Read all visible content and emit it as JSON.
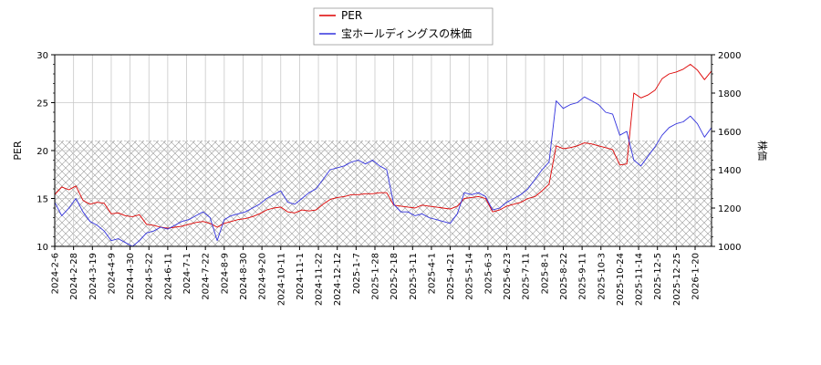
{
  "chart_data": {
    "type": "line",
    "legend": {
      "placement": "top-center",
      "entries": [
        {
          "label": "PER",
          "color": "#dd0000"
        },
        {
          "label": "宝ホールディングスの株価",
          "color": "#3333dd"
        }
      ]
    },
    "ylabel_left": "PER",
    "ylabel_right": "株価",
    "ylim_left": [
      10,
      30
    ],
    "ylim_right": [
      1000,
      2000
    ],
    "yticks_left": [
      "10",
      "15",
      "20",
      "25",
      "30"
    ],
    "yticks_right": [
      "1000",
      "1200",
      "1400",
      "1600",
      "1800",
      "2000"
    ],
    "shaded_band_left": [
      10,
      21
    ],
    "grid": true,
    "x_tick_labels": [
      "2024-2-6",
      "2024-2-28",
      "2024-3-19",
      "2024-4-9",
      "2024-4-30",
      "2024-5-22",
      "2024-6-11",
      "2024-7-1",
      "2024-7-22",
      "2024-8-9",
      "2024-8-30",
      "2024-9-20",
      "2024-10-11",
      "2024-11-1",
      "2024-11-22",
      "2024-12-12",
      "2025-1-7",
      "2025-1-28",
      "2025-2-18",
      "2025-3-11",
      "2025-4-1",
      "2025-4-21",
      "2025-5-14",
      "2025-6-3",
      "2025-6-23",
      "2025-7-11",
      "2025-8-1",
      "2025-8-22",
      "2025-9-11",
      "2025-10-3",
      "2025-10-24",
      "2025-11-14",
      "2025-12-5",
      "2025-12-25",
      "2026-1-20"
    ],
    "series": [
      {
        "name": "PER",
        "axis": "left",
        "color": "#dd0000",
        "values": [
          15.4,
          16.2,
          15.9,
          16.3,
          14.8,
          14.4,
          14.6,
          14.5,
          13.4,
          13.5,
          13.2,
          13.1,
          13.3,
          12.3,
          12.2,
          12.0,
          11.9,
          12.0,
          12.1,
          12.3,
          12.5,
          12.6,
          12.4,
          12.0,
          12.4,
          12.6,
          12.8,
          12.9,
          13.1,
          13.4,
          13.8,
          14.0,
          14.1,
          13.6,
          13.5,
          13.8,
          13.7,
          13.8,
          14.4,
          14.9,
          15.1,
          15.2,
          15.4,
          15.4,
          15.5,
          15.5,
          15.6,
          15.6,
          14.3,
          14.2,
          14.1,
          14.0,
          14.3,
          14.2,
          14.1,
          14.0,
          13.9,
          14.2,
          15.0,
          15.1,
          15.2,
          15.0,
          13.6,
          13.8,
          14.2,
          14.4,
          14.6,
          15.0,
          15.2,
          15.8,
          16.5,
          20.5,
          20.2,
          20.3,
          20.5,
          20.8,
          20.7,
          20.5,
          20.3,
          20.1,
          18.5,
          18.6,
          26.0,
          25.5,
          25.8,
          26.3,
          27.5,
          28.0,
          28.2,
          28.5,
          29.0,
          28.4,
          27.4,
          28.3
        ]
      },
      {
        "name": "宝ホールディングスの株価",
        "axis": "right",
        "color": "#3333dd",
        "values": [
          1230,
          1160,
          1200,
          1250,
          1180,
          1130,
          1110,
          1080,
          1030,
          1040,
          1020,
          1000,
          1030,
          1070,
          1080,
          1100,
          1090,
          1110,
          1130,
          1140,
          1160,
          1180,
          1150,
          1030,
          1140,
          1160,
          1170,
          1180,
          1200,
          1220,
          1250,
          1270,
          1290,
          1230,
          1220,
          1250,
          1280,
          1300,
          1350,
          1400,
          1410,
          1420,
          1440,
          1450,
          1430,
          1450,
          1420,
          1400,
          1220,
          1180,
          1180,
          1160,
          1170,
          1150,
          1140,
          1130,
          1120,
          1170,
          1280,
          1270,
          1280,
          1260,
          1190,
          1200,
          1230,
          1250,
          1270,
          1300,
          1350,
          1400,
          1440,
          1760,
          1720,
          1740,
          1750,
          1780,
          1760,
          1740,
          1700,
          1690,
          1580,
          1600,
          1450,
          1420,
          1470,
          1520,
          1580,
          1620,
          1640,
          1650,
          1680,
          1640,
          1570,
          1620
        ]
      }
    ]
  }
}
